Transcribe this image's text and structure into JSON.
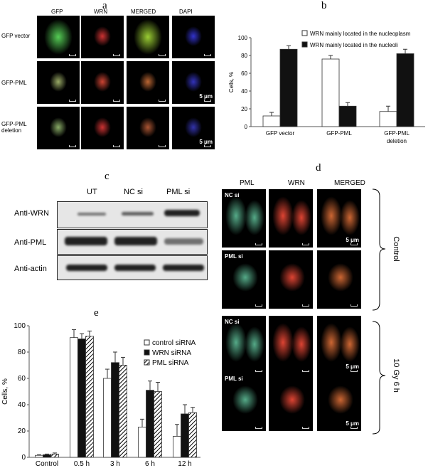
{
  "panel_a": {
    "label": "a",
    "columns": [
      "GFP",
      "WRN",
      "MERGED",
      "DAPI"
    ],
    "rows": [
      "GFP vector",
      "GFP-PML",
      "GFP-PML\ndeletion"
    ],
    "scale_bar": "5 μm"
  },
  "panel_c": {
    "label": "c",
    "lanes": [
      "UT",
      "NC si",
      "PML si"
    ],
    "rows": [
      "Anti-WRN",
      "Anti-PML",
      "Anti-actin"
    ]
  },
  "panel_d": {
    "label": "d",
    "columns": [
      "PML",
      "WRN",
      "MERGED"
    ],
    "row_tags": [
      "NC si",
      "PML si",
      "NC si",
      "PML si"
    ],
    "groups": [
      "Control",
      "10 Gy 6 h"
    ],
    "scale_bar": "5 μm"
  },
  "chart_data": [
    {
      "panel": "b",
      "type": "bar",
      "categories": [
        "GFP vector",
        "GFP-PML",
        "GFP-PML\ndeletion"
      ],
      "ylabel": "Cells, %",
      "ylim": [
        0,
        100
      ],
      "yticks": [
        0,
        20,
        40,
        60,
        80,
        100
      ],
      "legend": "top-right",
      "series": [
        {
          "name": "WRN mainly located in the nucleoplasm",
          "color": "#ffffff",
          "values": [
            12,
            76,
            17
          ],
          "errors": [
            4,
            4,
            6
          ]
        },
        {
          "name": "WRN mainly located in the nucleoli",
          "color": "#111111",
          "values": [
            87,
            23,
            82
          ],
          "errors": [
            4,
            4,
            5
          ]
        }
      ]
    },
    {
      "panel": "e",
      "type": "bar",
      "categories": [
        "Control",
        "0.5 h",
        "3 h",
        "6 h",
        "12 h"
      ],
      "ylabel": "Cells, %",
      "ylim": [
        0,
        100
      ],
      "yticks": [
        0,
        20,
        40,
        60,
        80,
        100
      ],
      "legend": "top-right",
      "series": [
        {
          "name": "control siRNA",
          "color": "#ffffff",
          "values": [
            1.5,
            91,
            60,
            23,
            16
          ],
          "errors": [
            0.5,
            6,
            7,
            6,
            9
          ]
        },
        {
          "name": "WRN siRNA",
          "color": "#111111",
          "values": [
            2,
            90,
            72,
            51,
            33
          ],
          "errors": [
            0.5,
            4,
            8,
            7,
            7
          ]
        },
        {
          "name": "PML siRNA",
          "color": "hatched",
          "values": [
            2.5,
            92,
            70,
            50,
            34
          ],
          "errors": [
            0.8,
            4,
            6,
            7,
            4
          ]
        }
      ]
    }
  ],
  "labels": {
    "b": "b",
    "e": "e"
  }
}
